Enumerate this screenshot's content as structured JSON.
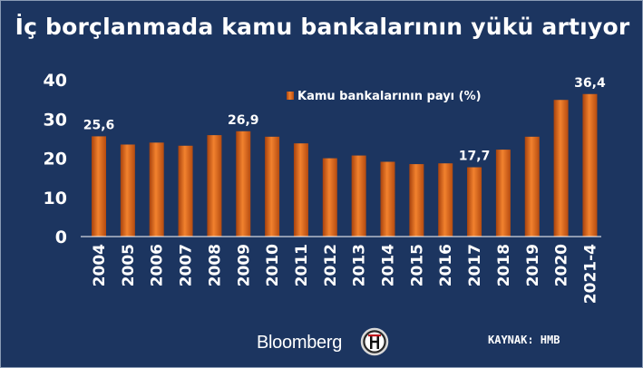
{
  "chart_data": {
    "type": "bar",
    "title": "İç borçlanmada kamu bankalarının yükü artıyor",
    "categories": [
      "2004",
      "2005",
      "2006",
      "2007",
      "2008",
      "2009",
      "2010",
      "2011",
      "2012",
      "2013",
      "2014",
      "2015",
      "2016",
      "2017",
      "2018",
      "2019",
      "2020",
      "2021-4"
    ],
    "series": [
      {
        "name": "Kamu bankalarının payı (%)",
        "values": [
          25.6,
          23.5,
          24.0,
          23.2,
          25.9,
          26.9,
          25.5,
          23.8,
          20.0,
          20.7,
          19.1,
          18.5,
          18.7,
          17.7,
          22.2,
          25.5,
          34.9,
          36.4
        ]
      }
    ],
    "data_labels": [
      {
        "index": 0,
        "text": "25,6"
      },
      {
        "index": 5,
        "text": "26,9"
      },
      {
        "index": 13,
        "text": "17,7"
      },
      {
        "index": 17,
        "text": "36,4"
      }
    ],
    "ylim": [
      0,
      40
    ],
    "yticks": [
      0,
      10,
      20,
      30,
      40
    ],
    "xlabel": "",
    "ylabel": "",
    "grid": false,
    "legend_position": "top-center",
    "bar_color": "#e06a1b",
    "background": "#1c3560"
  },
  "source": "KAYNAK: HMB",
  "logos": {
    "bloomberg": "Bloomberg",
    "ht": "HT"
  }
}
